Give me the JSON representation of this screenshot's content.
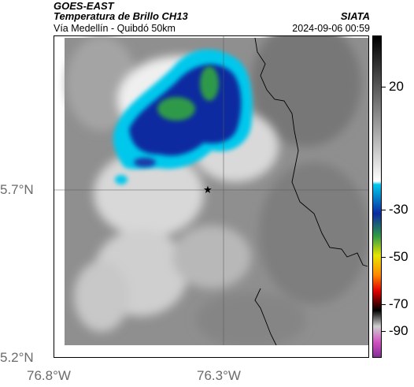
{
  "header": {
    "satellite": "GOES-EAST",
    "product": "Temperatura de Brillo CH13",
    "route": "Vía Medellín - Quibdó 50km",
    "org": "SIATA",
    "datetime": "2024-09-06 00:59"
  },
  "axes": {
    "y_ticks": [
      "5.7°N",
      "5.2°N"
    ],
    "x_ticks": [
      "76.8°W",
      "76.3°W"
    ]
  },
  "colorbar": {
    "tick_labels": [
      "20",
      "-30",
      "-50",
      "-70",
      "-90"
    ]
  },
  "map": {
    "marker": "star-icon",
    "colors": {
      "gray_land": "#8a8a8a",
      "cloud_white": "#f2f2f2",
      "cyan": "#00ccee",
      "blue": "#0b2aa0",
      "green": "#2f9a4a",
      "border_line": "#000000"
    }
  }
}
